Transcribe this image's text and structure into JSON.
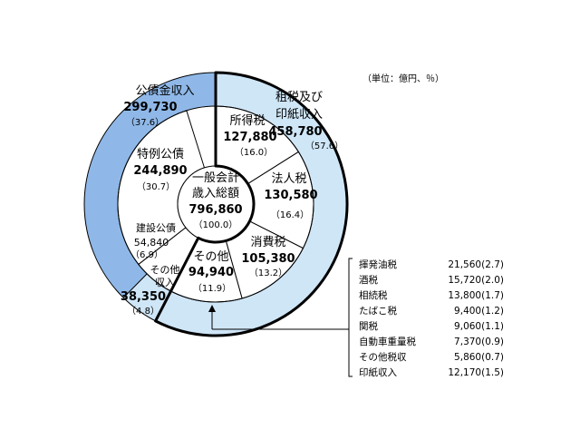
{
  "unit_note": "（単位：億円、％）",
  "chart_data": {
    "type": "pie",
    "title": "",
    "center": {
      "label_lines": [
        "一般会計",
        "歳入総額"
      ],
      "value": "796,860",
      "pct": "（100.0）"
    },
    "outer_ring": [
      {
        "name": "公債金収入",
        "value": 299730,
        "value_text": "299,730",
        "pct": "（37.6）",
        "color": "#8fb8e8"
      },
      {
        "name": "租税及び印紙収入",
        "name_lines": [
          "租税及び",
          "印紙収入"
        ],
        "value": 458780,
        "value_text": "458,780",
        "pct": "（57.6）",
        "color": "#cfe6f7"
      },
      {
        "name": "その他収入",
        "name_lines": [
          "その他",
          "収入"
        ],
        "value": 38350,
        "value_text": "38,350",
        "pct": "（4.8）",
        "color": "#cfe6f7"
      }
    ],
    "inner_ring": [
      {
        "name": "所得税",
        "value": 127880,
        "value_text": "127,880",
        "pct": "（16.0）"
      },
      {
        "name": "法人税",
        "value": 130580,
        "value_text": "130,580",
        "pct": "（16.4）"
      },
      {
        "name": "消費税",
        "value": 105380,
        "value_text": "105,380",
        "pct": "（13.2）"
      },
      {
        "name": "その他",
        "value": 94940,
        "value_text": "94,940",
        "pct": "（11.9）"
      },
      {
        "name": "建設公債",
        "value": 54840,
        "value_text": "54,840",
        "pct": "（6.9）"
      },
      {
        "name": "特例公債",
        "value": 244890,
        "value_text": "244,890",
        "pct": "（30.7）"
      }
    ],
    "breakdown": {
      "parent": "その他",
      "items": [
        {
          "name": "揮発油税",
          "value": 21560,
          "text": "21,560(2.7)"
        },
        {
          "name": "酒税",
          "value": 15720,
          "text": "15,720(2.0)"
        },
        {
          "name": "相続税",
          "value": 13800,
          "text": "13,800(1.7)"
        },
        {
          "name": "たばこ税",
          "value": 9400,
          "text": "9,400(1.2)"
        },
        {
          "name": "関税",
          "value": 9060,
          "text": "9,060(1.1)"
        },
        {
          "name": "自動車重量税",
          "value": 7370,
          "text": "7,370(0.9)"
        },
        {
          "name": "その他税収",
          "value": 5860,
          "text": "5,860(0.7)"
        },
        {
          "name": "印紙収入",
          "value": 12170,
          "text": "12,170(1.5)"
        }
      ]
    },
    "colors": {
      "bond": "#8fb8e8",
      "tax": "#cfe6f7",
      "inner": "#ffffff"
    }
  }
}
